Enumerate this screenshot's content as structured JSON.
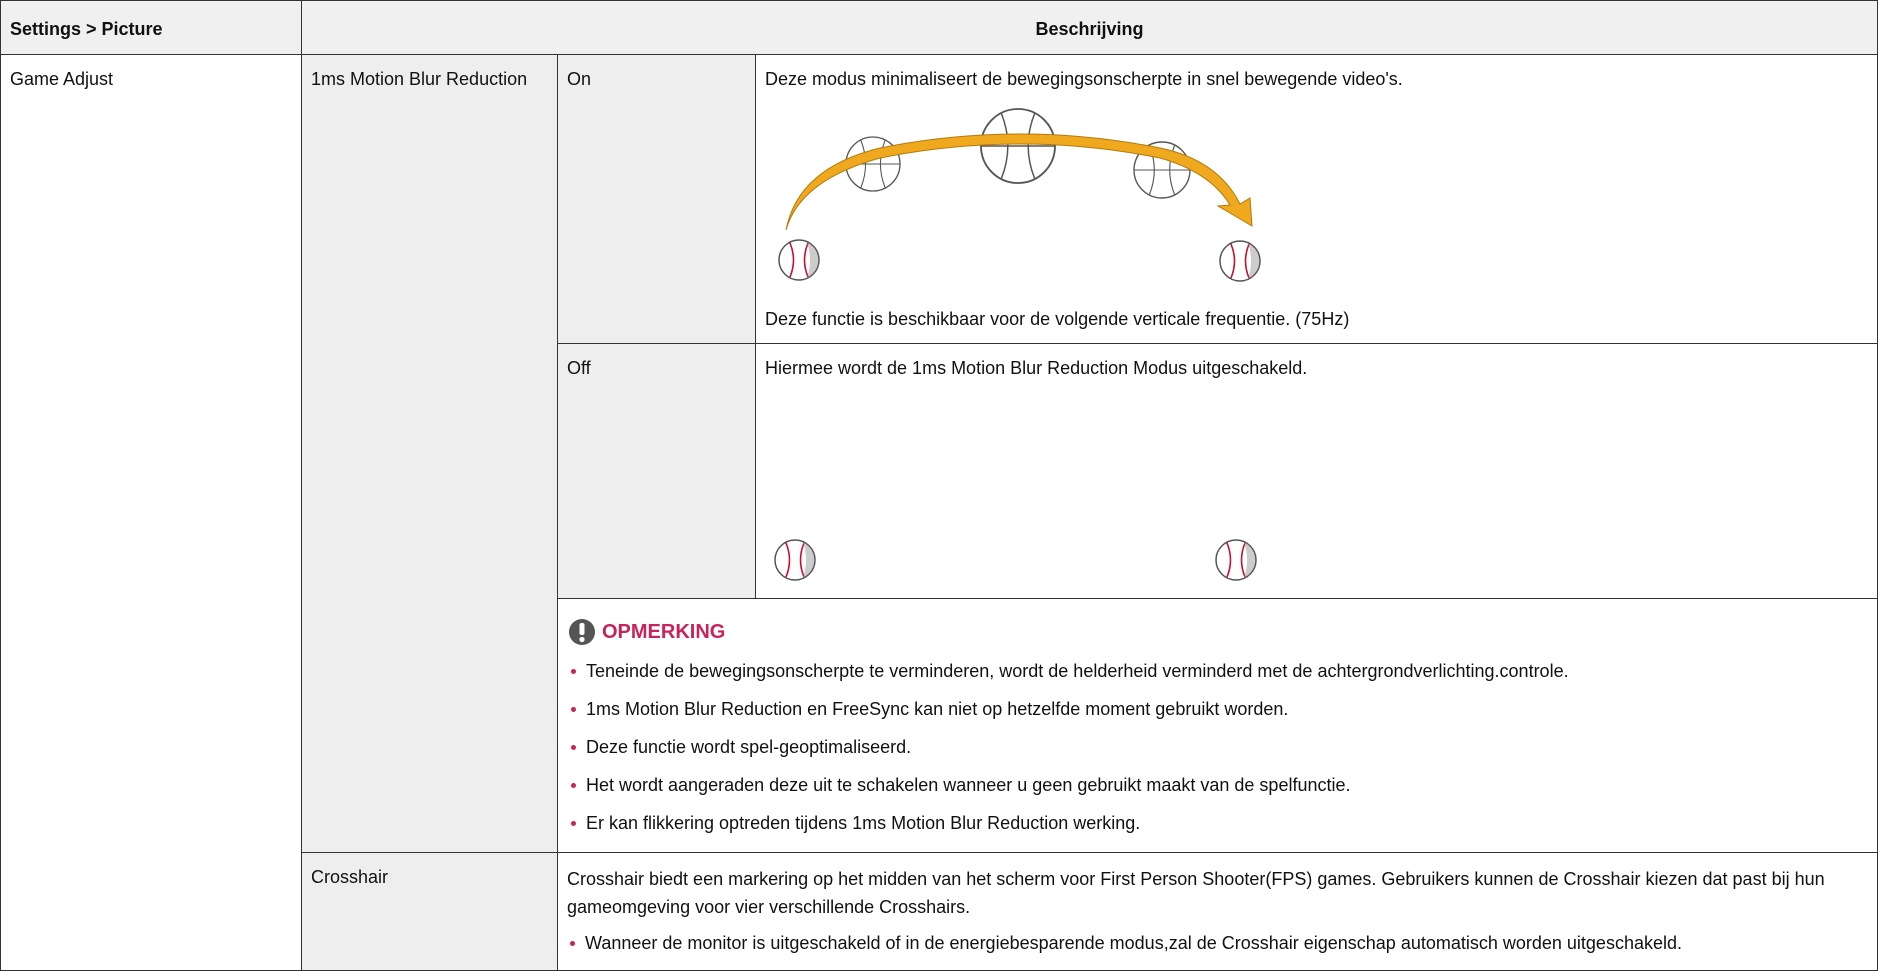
{
  "header": {
    "setting": "Settings > Picture",
    "description": "Beschrijving"
  },
  "game_adjust": {
    "label": "Game Adjust",
    "motion_blur": {
      "label": "1ms Motion Blur Reduction",
      "on": {
        "label": "On",
        "description": "Deze modus minimaliseert de bewegingsonscherpte in snel bewegende video's.",
        "note": "Deze functie is beschikbaar voor de volgende verticale frequentie. (75Hz)"
      },
      "off": {
        "label": "Off",
        "description": "Hiermee wordt de 1ms Motion Blur Reduction Modus uitgeschakeld."
      },
      "remark": {
        "title": "OPMERKING",
        "items": [
          "Teneinde de bewegingsonscherpte te verminderen, wordt de helderheid verminderd met de achtergrondverlichting.controle.",
          "1ms Motion Blur Reduction en FreeSync kan niet op hetzelfde moment gebruikt worden.",
          "Deze functie wordt spel-geoptimaliseerd.",
          "Het wordt aangeraden deze uit te schakelen wanneer u geen gebruikt maakt van de spelfunctie.",
          "Er kan flikkering optreden tijdens 1ms Motion Blur Reduction werking."
        ]
      }
    },
    "crosshair": {
      "label": "Crosshair",
      "description": "Crosshair biedt een markering op het midden van het scherm voor First Person Shooter(FPS) games. Gebruikers kunnen de Crosshair kiezen dat past bij hun gameomgeving voor vier verschillende Crosshairs.",
      "items": [
        "Wanneer de monitor is uitgeschakeld of in de energiebesparende modus,zal de Crosshair eigenschap automatisch worden uitgeschakeld."
      ]
    }
  }
}
